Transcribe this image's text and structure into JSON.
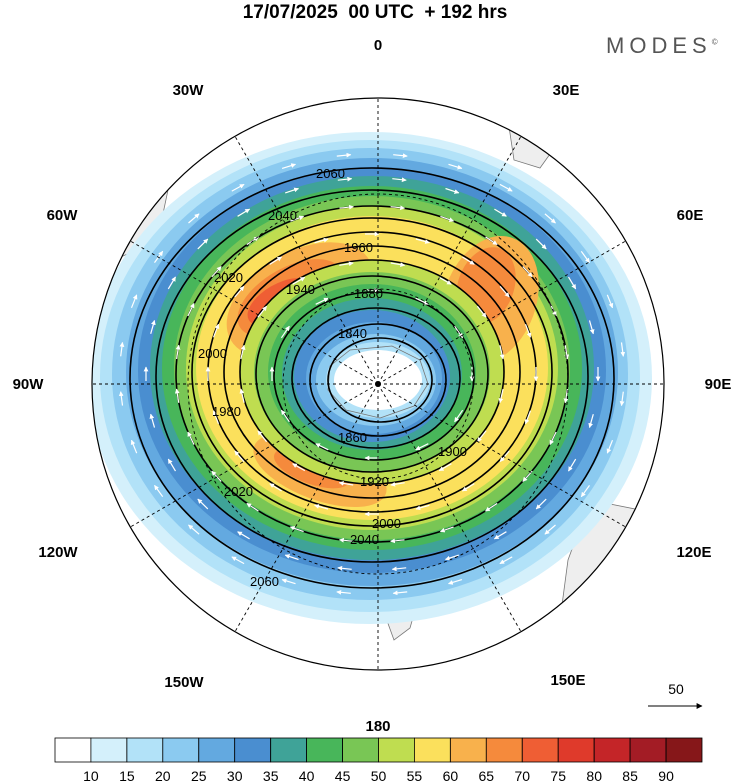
{
  "title": "17/07/2025  00 UTC  + 192 hrs",
  "brand": "MODES",
  "brand_mark": "©",
  "longitude_labels": [
    "0",
    "30E",
    "60E",
    "90E",
    "120E",
    "150E",
    "180",
    "150W",
    "120W",
    "90W",
    "60W",
    "30W"
  ],
  "contour_labels": [
    "2060",
    "2040",
    "2020",
    "2000",
    "1980",
    "1960",
    "1940",
    "1920",
    "1900",
    "1880",
    "1860",
    "1840"
  ],
  "vector_reference": "50",
  "colorbar": {
    "ticks": [
      "10",
      "15",
      "20",
      "25",
      "30",
      "35",
      "40",
      "45",
      "50",
      "55",
      "60",
      "65",
      "70",
      "75",
      "80",
      "85",
      "90"
    ],
    "colors": [
      "#ffffff",
      "#d4f0fb",
      "#b2e2f8",
      "#8bcaf0",
      "#63a9e0",
      "#4a8ed0",
      "#3fa398",
      "#48b65a",
      "#79c655",
      "#bfdd50",
      "#fbe05c",
      "#f8b14c",
      "#f58a3c",
      "#ef5e34",
      "#df3a2b",
      "#c42528",
      "#a31c25",
      "#861719"
    ]
  },
  "colors": {
    "land": "#eeeeee",
    "coast": "#777777",
    "grid": "#000000",
    "contour": "#000000",
    "vector": "#ffffff"
  }
}
